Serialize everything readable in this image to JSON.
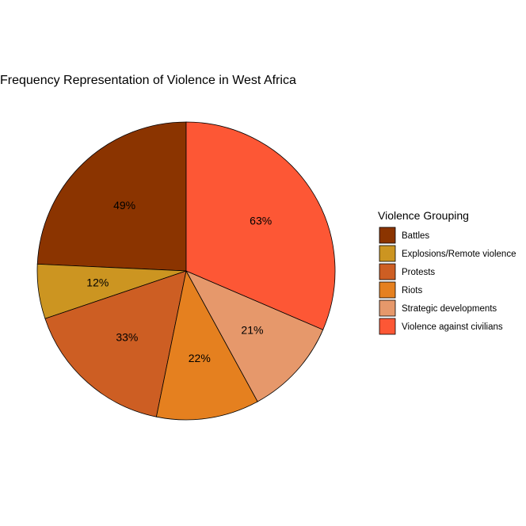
{
  "chart_data": {
    "type": "pie",
    "title": "Frequency Representation of Violence in West Africa",
    "legend_title": "Violence Grouping",
    "legend_position": "right",
    "start": "12 o'clock",
    "direction": "counterclockwise",
    "slices": [
      {
        "category": "Battles",
        "label": "49%",
        "share": 0.25,
        "color": "#8B3400"
      },
      {
        "category": "Explosions/Remote violence",
        "label": "12%",
        "share": 0.061,
        "color": "#CC9521"
      },
      {
        "category": "Protests",
        "label": "33%",
        "share": 0.171,
        "color": "#CD5E23"
      },
      {
        "category": "Riots",
        "label": "22%",
        "share": 0.115,
        "color": "#E5801F"
      },
      {
        "category": "Strategic developments",
        "label": "21%",
        "share": 0.109,
        "color": "#E6986B"
      },
      {
        "category": "Violence against civilians",
        "label": "63%",
        "share": 0.324,
        "color": "#FD5735"
      }
    ]
  }
}
